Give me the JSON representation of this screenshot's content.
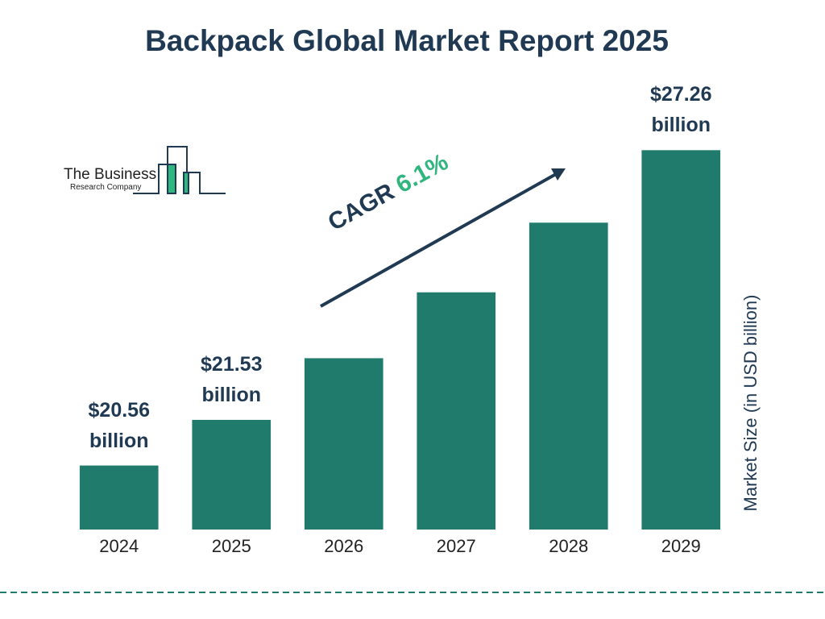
{
  "chart_data": {
    "type": "bar",
    "title": "Backpack Global Market Report 2025",
    "categories": [
      "2024",
      "2025",
      "2026",
      "2027",
      "2028",
      "2029"
    ],
    "values": [
      20.56,
      21.53,
      22.84,
      24.24,
      25.72,
      27.26
    ],
    "value_labels": [
      "$20.56 billion",
      "$21.53 billion",
      null,
      null,
      null,
      "$27.26 billion"
    ],
    "color": "#207b6c",
    "ylim": [
      19.2,
      27.3
    ],
    "y_axis_label": "Market Size (in USD billion)",
    "cagr_label": "CAGR",
    "cagr_value": "6.1%",
    "logo": {
      "line1": "The Business",
      "line2": "Research Company"
    }
  }
}
